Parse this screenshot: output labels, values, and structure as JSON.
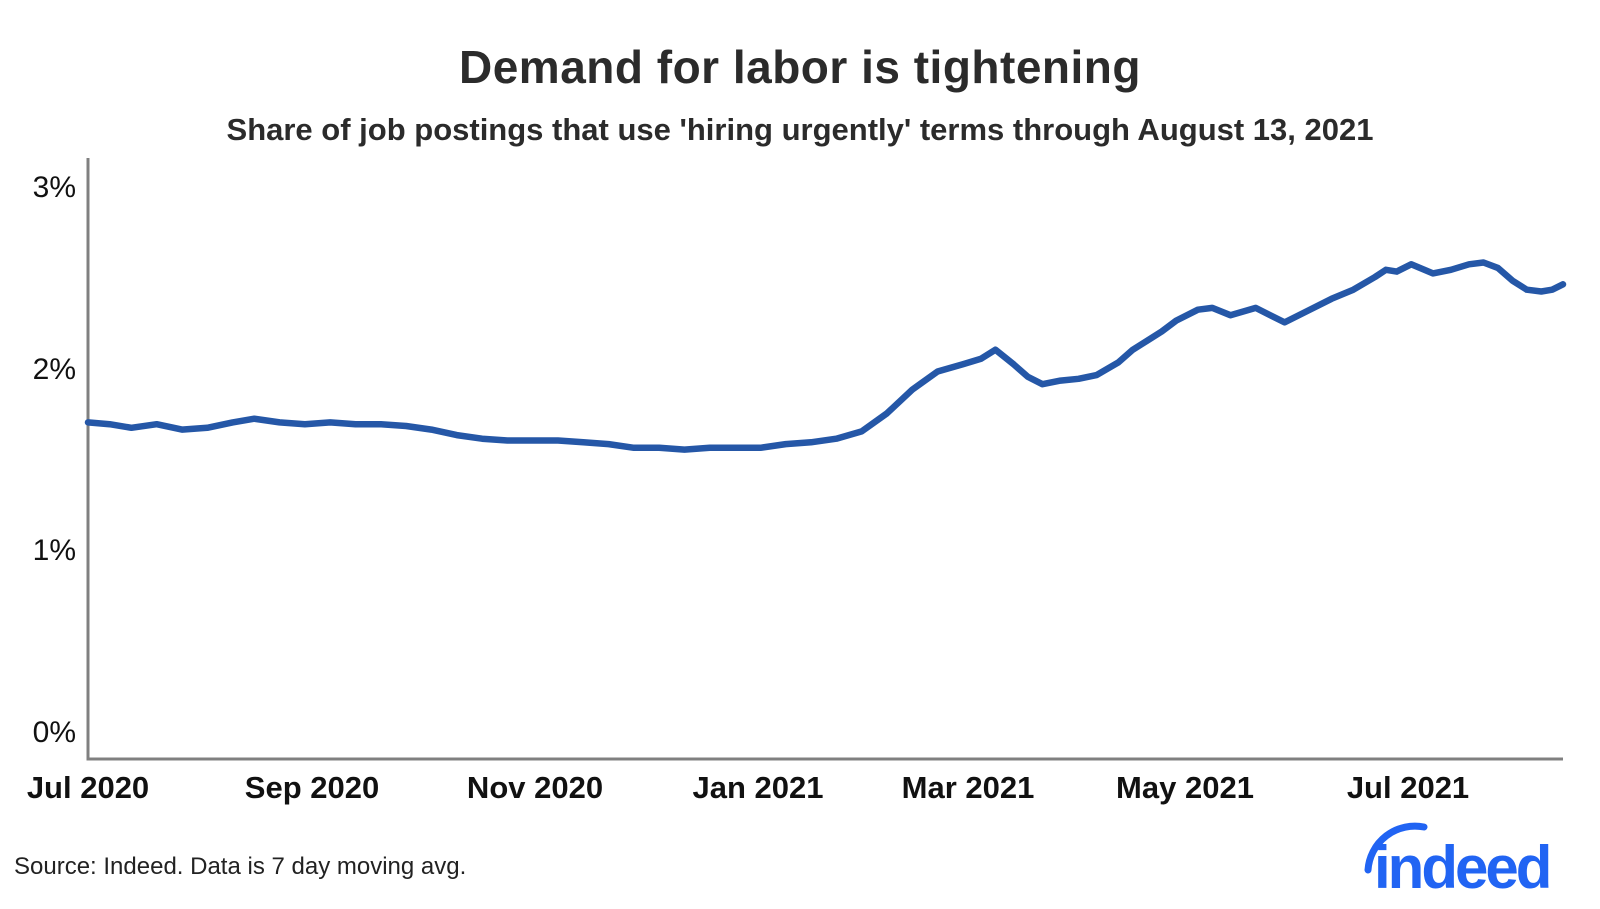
{
  "header": {
    "title": "Demand for labor is tightening",
    "subtitle": "Share of job postings that use 'hiring urgently' terms through August 13, 2021"
  },
  "source_note": "Source: Indeed. Data is 7 day moving avg.",
  "logo": {
    "text": "indeed",
    "color": "#2164f3"
  },
  "colors": {
    "line": "#2557a7",
    "axis": "#808080",
    "text": "#2b2b2b",
    "tick_text": "#111111"
  },
  "chart_data": {
    "type": "line",
    "title": "Demand for labor is tightening",
    "subtitle": "Share of job postings that use 'hiring urgently' terms through August 13, 2021",
    "xlabel": "",
    "ylabel": "",
    "grid": false,
    "legend": "none",
    "ylim": [
      0,
      3
    ],
    "yticks": [
      "3%",
      "2%",
      "1%",
      "0%"
    ],
    "ytick_values": [
      3,
      2,
      1,
      0
    ],
    "xticks": [
      "Jul 2020",
      "Sep 2020",
      "Nov 2020",
      "Jan 2021",
      "Mar 2021",
      "May 2021",
      "Jul 2021"
    ],
    "x_range": [
      "2020-07-01",
      "2021-08-13"
    ],
    "unit": "percent",
    "series": [
      {
        "name": "Share of job postings with 'hiring urgently' terms (7 day moving avg)",
        "x": [
          "2020-07-01",
          "2020-07-07",
          "2020-07-13",
          "2020-07-20",
          "2020-07-27",
          "2020-08-03",
          "2020-08-10",
          "2020-08-16",
          "2020-08-23",
          "2020-08-30",
          "2020-09-06",
          "2020-09-13",
          "2020-09-20",
          "2020-09-27",
          "2020-10-04",
          "2020-10-11",
          "2020-10-18",
          "2020-10-25",
          "2020-11-01",
          "2020-11-08",
          "2020-11-15",
          "2020-11-22",
          "2020-11-29",
          "2020-12-06",
          "2020-12-13",
          "2020-12-20",
          "2020-12-27",
          "2021-01-03",
          "2021-01-10",
          "2021-01-17",
          "2021-01-24",
          "2021-01-31",
          "2021-02-07",
          "2021-02-14",
          "2021-02-21",
          "2021-02-28",
          "2021-03-05",
          "2021-03-09",
          "2021-03-14",
          "2021-03-18",
          "2021-03-22",
          "2021-03-27",
          "2021-04-01",
          "2021-04-06",
          "2021-04-12",
          "2021-04-16",
          "2021-04-20",
          "2021-04-24",
          "2021-04-28",
          "2021-05-04",
          "2021-05-08",
          "2021-05-13",
          "2021-05-20",
          "2021-05-28",
          "2021-06-03",
          "2021-06-10",
          "2021-06-16",
          "2021-06-22",
          "2021-06-25",
          "2021-06-28",
          "2021-07-02",
          "2021-07-08",
          "2021-07-13",
          "2021-07-18",
          "2021-07-22",
          "2021-07-26",
          "2021-07-30",
          "2021-08-03",
          "2021-08-07",
          "2021-08-10",
          "2021-08-13"
        ],
        "y": [
          1.71,
          1.7,
          1.68,
          1.7,
          1.67,
          1.68,
          1.71,
          1.73,
          1.71,
          1.7,
          1.71,
          1.7,
          1.7,
          1.69,
          1.67,
          1.64,
          1.62,
          1.61,
          1.61,
          1.61,
          1.6,
          1.59,
          1.57,
          1.57,
          1.56,
          1.57,
          1.57,
          1.57,
          1.59,
          1.6,
          1.62,
          1.66,
          1.76,
          1.89,
          1.99,
          2.03,
          2.06,
          2.11,
          2.03,
          1.96,
          1.92,
          1.94,
          1.95,
          1.97,
          2.04,
          2.11,
          2.16,
          2.21,
          2.27,
          2.33,
          2.34,
          2.3,
          2.34,
          2.26,
          2.32,
          2.39,
          2.44,
          2.51,
          2.55,
          2.54,
          2.58,
          2.53,
          2.55,
          2.58,
          2.59,
          2.56,
          2.49,
          2.44,
          2.43,
          2.44,
          2.47
        ]
      }
    ]
  }
}
